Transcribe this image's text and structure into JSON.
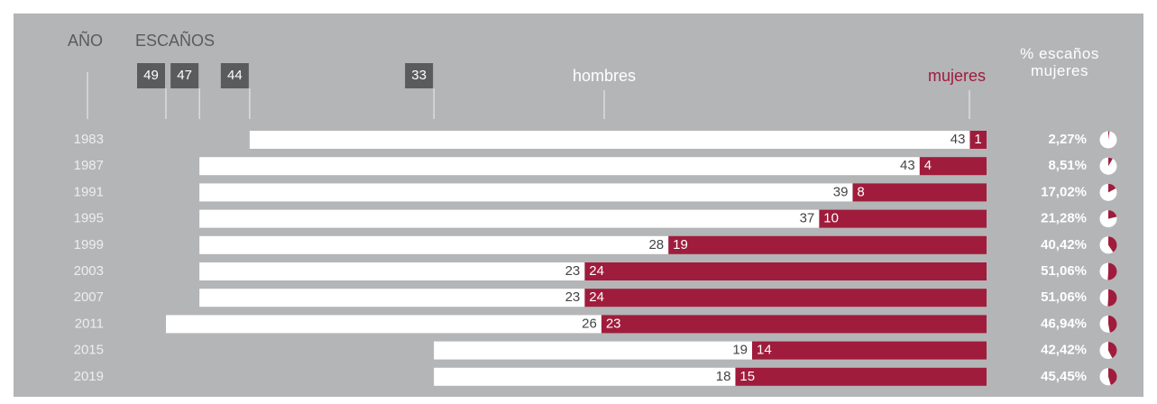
{
  "chart_data": {
    "type": "bar",
    "year_label": "AÑO",
    "seats_label": "ESCAÑOS",
    "pct_label": "% escaños mujeres",
    "categories": [
      "1983",
      "1987",
      "1991",
      "1995",
      "1999",
      "2003",
      "2007",
      "2011",
      "2015",
      "2019"
    ],
    "series": [
      {
        "name": "mujeres",
        "color": "#a01c3c",
        "values": [
          1,
          4,
          8,
          10,
          19,
          24,
          24,
          23,
          14,
          15
        ]
      },
      {
        "name": "hombres",
        "color": "#ffffff",
        "values": [
          43,
          43,
          39,
          37,
          28,
          23,
          23,
          26,
          19,
          18
        ]
      }
    ],
    "pct": {
      "values": [
        2.27,
        8.51,
        17.02,
        21.28,
        40.42,
        51.06,
        51.06,
        46.94,
        42.42,
        45.45
      ],
      "value_labels": [
        "2,27%",
        "8,51%",
        "17,02%",
        "21,28%",
        "40,42%",
        "51,06%",
        "51,06%",
        "46,94%",
        "42,42%",
        "45,45%"
      ],
      "color": "#a01c3c"
    },
    "xlim": [
      0,
      49
    ],
    "xticks": [
      49,
      47,
      44,
      33
    ],
    "stacked": true
  }
}
